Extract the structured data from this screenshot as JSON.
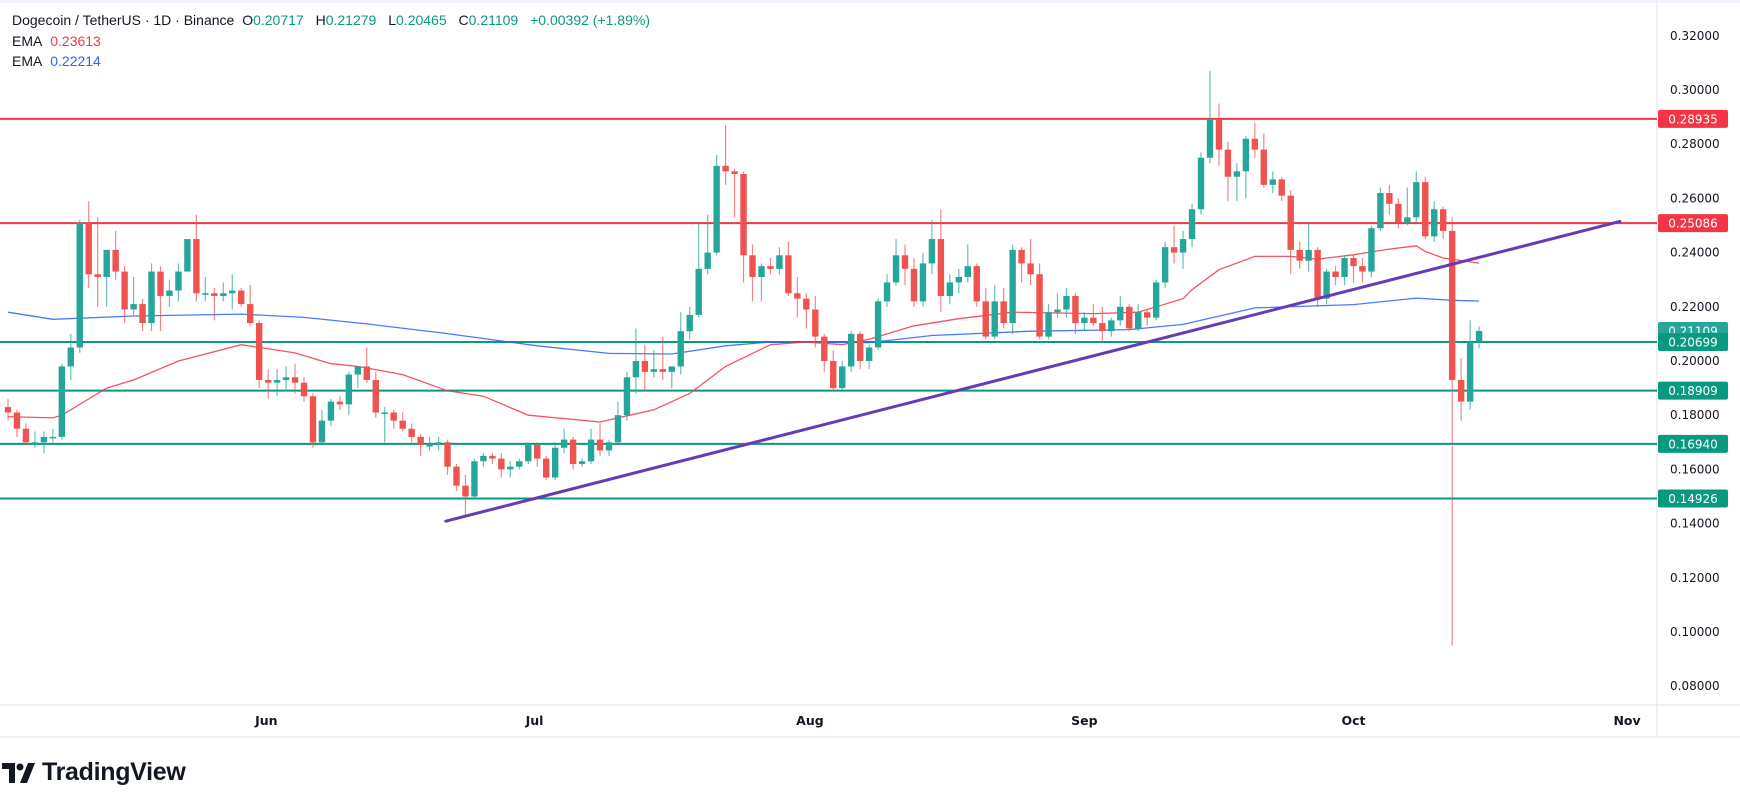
{
  "header": {
    "symbol": "Dogecoin / TetherUS · 1D · Binance",
    "o_label": "O",
    "o_value": "0.20717",
    "h_label": "H",
    "h_value": "0.21279",
    "l_label": "L",
    "l_value": "0.20465",
    "c_label": "C",
    "c_value": "0.21109",
    "change": "+0.00392 (+1.89%)",
    "ema1_label": "EMA",
    "ema1_value": "0.23613",
    "ema2_label": "EMA",
    "ema2_value": "0.22214"
  },
  "branding": {
    "logo_text": "TradingView"
  },
  "colors": {
    "up": "#26a69a",
    "down": "#ef5350",
    "resistance": "#f23645",
    "support": "#089981",
    "trendline": "#673ab7",
    "ema_fast": "#f23645",
    "ema_slow": "#2962ff",
    "last_price": "#26a69a"
  },
  "chart_data": {
    "type": "candlestick",
    "ylim": [
      0.08,
      0.32
    ],
    "y_ticks": [
      "0.32000",
      "0.30000",
      "0.28000",
      "0.26000",
      "0.24000",
      "0.22000",
      "0.20000",
      "0.18000",
      "0.16000",
      "0.14000",
      "0.12000",
      "0.10000",
      "0.08000"
    ],
    "x_ticks": [
      "Jun",
      "Jul",
      "Aug",
      "Sep",
      "Oct",
      "Nov"
    ],
    "grid": false,
    "candles_ohlc": [
      [
        0.183,
        0.186,
        0.178,
        0.181
      ],
      [
        0.181,
        0.182,
        0.172,
        0.175
      ],
      [
        0.175,
        0.177,
        0.169,
        0.17
      ],
      [
        0.17,
        0.174,
        0.168,
        0.17
      ],
      [
        0.17,
        0.174,
        0.166,
        0.172
      ],
      [
        0.172,
        0.175,
        0.17,
        0.172
      ],
      [
        0.172,
        0.199,
        0.171,
        0.198
      ],
      [
        0.198,
        0.21,
        0.193,
        0.205
      ],
      [
        0.205,
        0.252,
        0.203,
        0.251
      ],
      [
        0.251,
        0.259,
        0.227,
        0.232
      ],
      [
        0.232,
        0.253,
        0.22,
        0.231
      ],
      [
        0.231,
        0.241,
        0.22,
        0.241
      ],
      [
        0.241,
        0.248,
        0.23,
        0.233
      ],
      [
        0.233,
        0.235,
        0.214,
        0.219
      ],
      [
        0.219,
        0.231,
        0.217,
        0.221
      ],
      [
        0.221,
        0.223,
        0.211,
        0.214
      ],
      [
        0.214,
        0.236,
        0.211,
        0.233
      ],
      [
        0.233,
        0.235,
        0.211,
        0.224
      ],
      [
        0.224,
        0.23,
        0.22,
        0.226
      ],
      [
        0.226,
        0.236,
        0.222,
        0.233
      ],
      [
        0.233,
        0.245,
        0.233,
        0.245
      ],
      [
        0.245,
        0.254,
        0.222,
        0.225
      ],
      [
        0.225,
        0.231,
        0.222,
        0.225
      ],
      [
        0.225,
        0.227,
        0.215,
        0.224
      ],
      [
        0.224,
        0.229,
        0.222,
        0.225
      ],
      [
        0.225,
        0.232,
        0.219,
        0.226
      ],
      [
        0.226,
        0.227,
        0.22,
        0.221
      ],
      [
        0.221,
        0.228,
        0.213,
        0.214
      ],
      [
        0.214,
        0.215,
        0.19,
        0.193
      ],
      [
        0.193,
        0.197,
        0.186,
        0.192
      ],
      [
        0.192,
        0.197,
        0.187,
        0.193
      ],
      [
        0.193,
        0.198,
        0.189,
        0.194
      ],
      [
        0.194,
        0.199,
        0.188,
        0.192
      ],
      [
        0.192,
        0.194,
        0.185,
        0.187
      ],
      [
        0.187,
        0.188,
        0.168,
        0.17
      ],
      [
        0.17,
        0.182,
        0.169,
        0.178
      ],
      [
        0.178,
        0.186,
        0.176,
        0.185
      ],
      [
        0.185,
        0.187,
        0.182,
        0.184
      ],
      [
        0.184,
        0.196,
        0.18,
        0.195
      ],
      [
        0.195,
        0.198,
        0.19,
        0.198
      ],
      [
        0.198,
        0.205,
        0.192,
        0.193
      ],
      [
        0.193,
        0.196,
        0.179,
        0.181
      ],
      [
        0.181,
        0.183,
        0.17,
        0.181
      ],
      [
        0.181,
        0.182,
        0.175,
        0.178
      ],
      [
        0.178,
        0.181,
        0.174,
        0.175
      ],
      [
        0.175,
        0.177,
        0.17,
        0.172
      ],
      [
        0.172,
        0.173,
        0.165,
        0.169
      ],
      [
        0.169,
        0.172,
        0.167,
        0.169
      ],
      [
        0.169,
        0.172,
        0.167,
        0.17
      ],
      [
        0.17,
        0.171,
        0.158,
        0.161
      ],
      [
        0.161,
        0.162,
        0.152,
        0.154
      ],
      [
        0.154,
        0.158,
        0.143,
        0.15
      ],
      [
        0.15,
        0.164,
        0.149,
        0.163
      ],
      [
        0.163,
        0.166,
        0.161,
        0.165
      ],
      [
        0.165,
        0.166,
        0.162,
        0.164
      ],
      [
        0.164,
        0.166,
        0.157,
        0.16
      ],
      [
        0.16,
        0.163,
        0.157,
        0.161
      ],
      [
        0.161,
        0.164,
        0.16,
        0.163
      ],
      [
        0.163,
        0.17,
        0.162,
        0.169
      ],
      [
        0.169,
        0.17,
        0.161,
        0.164
      ],
      [
        0.164,
        0.165,
        0.156,
        0.157
      ],
      [
        0.157,
        0.17,
        0.156,
        0.168
      ],
      [
        0.168,
        0.175,
        0.166,
        0.171
      ],
      [
        0.171,
        0.172,
        0.16,
        0.162
      ],
      [
        0.162,
        0.164,
        0.161,
        0.163
      ],
      [
        0.163,
        0.175,
        0.162,
        0.171
      ],
      [
        0.171,
        0.177,
        0.165,
        0.167
      ],
      [
        0.167,
        0.171,
        0.165,
        0.17
      ],
      [
        0.17,
        0.185,
        0.169,
        0.18
      ],
      [
        0.18,
        0.196,
        0.178,
        0.194
      ],
      [
        0.194,
        0.212,
        0.188,
        0.2
      ],
      [
        0.2,
        0.206,
        0.189,
        0.196
      ],
      [
        0.196,
        0.204,
        0.194,
        0.197
      ],
      [
        0.197,
        0.209,
        0.193,
        0.196
      ],
      [
        0.196,
        0.198,
        0.19,
        0.198
      ],
      [
        0.198,
        0.218,
        0.195,
        0.211
      ],
      [
        0.211,
        0.22,
        0.208,
        0.217
      ],
      [
        0.217,
        0.251,
        0.216,
        0.234
      ],
      [
        0.234,
        0.254,
        0.232,
        0.24
      ],
      [
        0.24,
        0.276,
        0.239,
        0.272
      ],
      [
        0.272,
        0.287,
        0.265,
        0.27
      ],
      [
        0.27,
        0.271,
        0.253,
        0.269
      ],
      [
        0.269,
        0.27,
        0.229,
        0.239
      ],
      [
        0.239,
        0.243,
        0.222,
        0.231
      ],
      [
        0.231,
        0.236,
        0.222,
        0.235
      ],
      [
        0.235,
        0.238,
        0.232,
        0.234
      ],
      [
        0.234,
        0.242,
        0.232,
        0.239
      ],
      [
        0.239,
        0.244,
        0.224,
        0.225
      ],
      [
        0.225,
        0.231,
        0.216,
        0.223
      ],
      [
        0.223,
        0.225,
        0.212,
        0.219
      ],
      [
        0.219,
        0.224,
        0.205,
        0.209
      ],
      [
        0.209,
        0.21,
        0.196,
        0.2
      ],
      [
        0.2,
        0.204,
        0.189,
        0.19
      ],
      [
        0.19,
        0.2,
        0.189,
        0.198
      ],
      [
        0.198,
        0.211,
        0.196,
        0.21
      ],
      [
        0.21,
        0.211,
        0.197,
        0.2
      ],
      [
        0.2,
        0.206,
        0.197,
        0.205
      ],
      [
        0.205,
        0.223,
        0.204,
        0.222
      ],
      [
        0.222,
        0.232,
        0.22,
        0.229
      ],
      [
        0.229,
        0.245,
        0.228,
        0.239
      ],
      [
        0.239,
        0.243,
        0.228,
        0.234
      ],
      [
        0.234,
        0.238,
        0.22,
        0.222
      ],
      [
        0.222,
        0.24,
        0.22,
        0.236
      ],
      [
        0.236,
        0.252,
        0.232,
        0.245
      ],
      [
        0.245,
        0.256,
        0.218,
        0.224
      ],
      [
        0.224,
        0.232,
        0.221,
        0.229
      ],
      [
        0.229,
        0.234,
        0.225,
        0.231
      ],
      [
        0.231,
        0.243,
        0.229,
        0.235
      ],
      [
        0.235,
        0.236,
        0.22,
        0.222
      ],
      [
        0.222,
        0.227,
        0.208,
        0.209
      ],
      [
        0.209,
        0.228,
        0.208,
        0.222
      ],
      [
        0.222,
        0.227,
        0.212,
        0.214
      ],
      [
        0.214,
        0.243,
        0.21,
        0.241
      ],
      [
        0.241,
        0.242,
        0.229,
        0.236
      ],
      [
        0.236,
        0.245,
        0.228,
        0.232
      ],
      [
        0.232,
        0.236,
        0.208,
        0.209
      ],
      [
        0.209,
        0.221,
        0.208,
        0.218
      ],
      [
        0.218,
        0.225,
        0.216,
        0.219
      ],
      [
        0.219,
        0.227,
        0.216,
        0.224
      ],
      [
        0.224,
        0.225,
        0.21,
        0.214
      ],
      [
        0.214,
        0.218,
        0.211,
        0.216
      ],
      [
        0.216,
        0.221,
        0.213,
        0.214
      ],
      [
        0.214,
        0.22,
        0.207,
        0.211
      ],
      [
        0.211,
        0.216,
        0.209,
        0.215
      ],
      [
        0.215,
        0.224,
        0.213,
        0.22
      ],
      [
        0.22,
        0.221,
        0.211,
        0.212
      ],
      [
        0.212,
        0.221,
        0.211,
        0.218
      ],
      [
        0.218,
        0.219,
        0.213,
        0.216
      ],
      [
        0.216,
        0.23,
        0.215,
        0.229
      ],
      [
        0.229,
        0.244,
        0.227,
        0.242
      ],
      [
        0.242,
        0.25,
        0.236,
        0.24
      ],
      [
        0.24,
        0.248,
        0.234,
        0.245
      ],
      [
        0.245,
        0.258,
        0.242,
        0.256
      ],
      [
        0.256,
        0.277,
        0.254,
        0.275
      ],
      [
        0.275,
        0.307,
        0.273,
        0.289
      ],
      [
        0.289,
        0.295,
        0.272,
        0.278
      ],
      [
        0.278,
        0.281,
        0.259,
        0.268
      ],
      [
        0.268,
        0.273,
        0.259,
        0.27
      ],
      [
        0.27,
        0.283,
        0.26,
        0.282
      ],
      [
        0.282,
        0.288,
        0.275,
        0.278
      ],
      [
        0.278,
        0.284,
        0.264,
        0.265
      ],
      [
        0.265,
        0.27,
        0.262,
        0.267
      ],
      [
        0.267,
        0.268,
        0.259,
        0.261
      ],
      [
        0.261,
        0.263,
        0.232,
        0.241
      ],
      [
        0.241,
        0.244,
        0.234,
        0.237
      ],
      [
        0.237,
        0.251,
        0.233,
        0.241
      ],
      [
        0.241,
        0.242,
        0.22,
        0.223
      ],
      [
        0.223,
        0.234,
        0.221,
        0.233
      ],
      [
        0.233,
        0.235,
        0.228,
        0.231
      ],
      [
        0.231,
        0.239,
        0.228,
        0.238
      ],
      [
        0.238,
        0.239,
        0.229,
        0.235
      ],
      [
        0.235,
        0.238,
        0.229,
        0.233
      ],
      [
        0.233,
        0.25,
        0.231,
        0.249
      ],
      [
        0.249,
        0.264,
        0.248,
        0.262
      ],
      [
        0.262,
        0.265,
        0.254,
        0.258
      ],
      [
        0.258,
        0.26,
        0.249,
        0.251
      ],
      [
        0.251,
        0.264,
        0.25,
        0.253
      ],
      [
        0.253,
        0.27,
        0.251,
        0.266
      ],
      [
        0.266,
        0.268,
        0.245,
        0.246
      ],
      [
        0.246,
        0.259,
        0.244,
        0.256
      ],
      [
        0.256,
        0.257,
        0.245,
        0.248
      ],
      [
        0.248,
        0.253,
        0.095,
        0.193
      ],
      [
        0.193,
        0.201,
        0.178,
        0.185
      ],
      [
        0.185,
        0.215,
        0.182,
        0.207
      ],
      [
        0.20717,
        0.21279,
        0.20465,
        0.21109
      ]
    ],
    "ema_fast": [
      [
        0,
        0.1795
      ],
      [
        5,
        0.179
      ],
      [
        6,
        0.18
      ],
      [
        11,
        0.19
      ],
      [
        14,
        0.193
      ],
      [
        19,
        0.2
      ],
      [
        26,
        0.206
      ],
      [
        32,
        0.203
      ],
      [
        36,
        0.199
      ],
      [
        39,
        0.198
      ],
      [
        44,
        0.195
      ],
      [
        49,
        0.189
      ],
      [
        53,
        0.187
      ],
      [
        58,
        0.18
      ],
      [
        66,
        0.1775
      ],
      [
        72,
        0.182
      ],
      [
        76,
        0.188
      ],
      [
        80,
        0.198
      ],
      [
        85,
        0.206
      ],
      [
        89,
        0.207
      ],
      [
        93,
        0.206
      ],
      [
        96,
        0.208
      ],
      [
        101,
        0.213
      ],
      [
        106,
        0.2156
      ],
      [
        112,
        0.218
      ],
      [
        121,
        0.2175
      ],
      [
        126,
        0.218
      ],
      [
        131,
        0.223
      ],
      [
        132,
        0.2263
      ],
      [
        135,
        0.2337
      ],
      [
        139,
        0.2386
      ],
      [
        143,
        0.2386
      ],
      [
        146,
        0.2376
      ],
      [
        150,
        0.2392
      ],
      [
        154,
        0.2413
      ],
      [
        157,
        0.2425
      ],
      [
        158,
        0.2404
      ],
      [
        160,
        0.238
      ],
      [
        164,
        0.23613
      ]
    ],
    "ema_slow": [
      [
        0,
        0.218
      ],
      [
        5,
        0.2154
      ],
      [
        14,
        0.2166
      ],
      [
        26,
        0.2173
      ],
      [
        33,
        0.2161
      ],
      [
        40,
        0.2137
      ],
      [
        48,
        0.2105
      ],
      [
        53,
        0.2083
      ],
      [
        59,
        0.2056
      ],
      [
        67,
        0.2028
      ],
      [
        74,
        0.2026
      ],
      [
        80,
        0.2056
      ],
      [
        85,
        0.207
      ],
      [
        96,
        0.2068
      ],
      [
        103,
        0.2094
      ],
      [
        114,
        0.211
      ],
      [
        125,
        0.2116
      ],
      [
        131,
        0.2135
      ],
      [
        139,
        0.2196
      ],
      [
        150,
        0.2208
      ],
      [
        157,
        0.2232
      ],
      [
        161,
        0.2224
      ],
      [
        164,
        0.22214
      ]
    ],
    "horizontal_levels": [
      {
        "value": 0.28935,
        "label": "0.28935",
        "kind": "resistance"
      },
      {
        "value": 0.25086,
        "label": "0.25086",
        "kind": "resistance"
      },
      {
        "value": 0.20699,
        "label": "0.20699",
        "kind": "support"
      },
      {
        "value": 0.18909,
        "label": "0.18909",
        "kind": "support"
      },
      {
        "value": 0.1694,
        "label": "0.16940",
        "kind": "support"
      },
      {
        "value": 0.14926,
        "label": "0.14926",
        "kind": "support"
      }
    ],
    "last_price": {
      "value": 0.21109,
      "label": "0.21109"
    },
    "trendline": {
      "from": [
        48.8,
        0.1409
      ],
      "to": [
        179.7,
        0.2515
      ]
    }
  }
}
